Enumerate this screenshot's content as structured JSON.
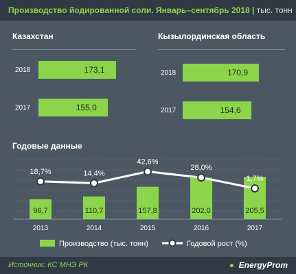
{
  "title": {
    "main": "Производство йодированной соли. Январь–сентябрь 2018",
    "unit": "тыс. тонн"
  },
  "kazakhstan": {
    "title": "Казахстан",
    "rows": [
      {
        "year": "2018",
        "value": 173.1,
        "label": "173,1"
      },
      {
        "year": "2017",
        "value": 155.0,
        "label": "155,0"
      }
    ]
  },
  "kyzylorda": {
    "title": "Кызылординская область",
    "rows": [
      {
        "year": "2018",
        "value": 170.9,
        "label": "170,9"
      },
      {
        "year": "2017",
        "value": 154.6,
        "label": "154,6"
      }
    ]
  },
  "annual": {
    "title": "Годовые данные"
  },
  "chart_data": {
    "type": "bar",
    "categories": [
      "2013",
      "2014",
      "2015",
      "2016",
      "2017"
    ],
    "series": [
      {
        "name": "Производство (тыс. тонн)",
        "kind": "bar",
        "values": [
          96.7,
          110.7,
          157.8,
          202.0,
          205.5
        ],
        "labels": [
          "96,7",
          "110,7",
          "157,8",
          "202,0",
          "205,5"
        ]
      },
      {
        "name": "Годовой рост (%)",
        "kind": "line",
        "values": [
          18.7,
          14.4,
          42.6,
          28.0,
          1.7
        ],
        "labels": [
          "18,7%",
          "14,4%",
          "42,6%",
          "28,0%",
          "1,7%"
        ]
      }
    ],
    "legend": "bottom",
    "grid": true
  },
  "colors": {
    "background": "#4b5863",
    "header": "#2f3a44",
    "bar": "#8cd54b",
    "line": "#ffffff",
    "accent": "#8fd14f"
  },
  "footer": {
    "source": "Источник: КС МНЭ РК",
    "brand": "EnergyProm",
    "brand_icon": "energyprom-logo-icon"
  }
}
